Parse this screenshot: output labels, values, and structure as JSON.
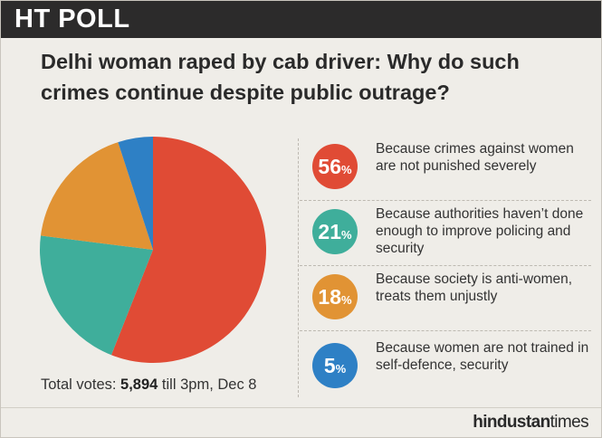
{
  "header": {
    "title": "HT POLL"
  },
  "question": "Delhi woman raped by cab driver: Why do such crimes continue despite public outrage?",
  "chart_data": {
    "type": "pie",
    "values": [
      56,
      21,
      18,
      5
    ],
    "colors": [
      "#e04b35",
      "#3fae9b",
      "#e19334",
      "#2e80c5"
    ],
    "labels": [
      "Because crimes against women are not punished severely",
      "Because authorities haven’t done enough to improve policing and security",
      "Because society is anti-women, treats them unjustly",
      "Because women are not trained in self-defence, security"
    ]
  },
  "legend": [
    {
      "num": "56",
      "pct": "%",
      "color": "#e04b35",
      "text": "Because crimes against women are not punished severely"
    },
    {
      "num": "21",
      "pct": "%",
      "color": "#3fae9b",
      "text": "Because authorities haven’t done enough to improve policing and security"
    },
    {
      "num": "18",
      "pct": "%",
      "color": "#e19334",
      "text": "Because society is anti-women, treats them unjustly"
    },
    {
      "num": "5",
      "pct": "%",
      "color": "#2e80c5",
      "text": "Because women are not trained in self-defence, security"
    }
  ],
  "footer": {
    "total_prefix": "Total votes: ",
    "total_votes": "5,894",
    "total_suffix": " till 3pm, Dec 8",
    "brand_bold": "hindustan",
    "brand_light": "times"
  }
}
